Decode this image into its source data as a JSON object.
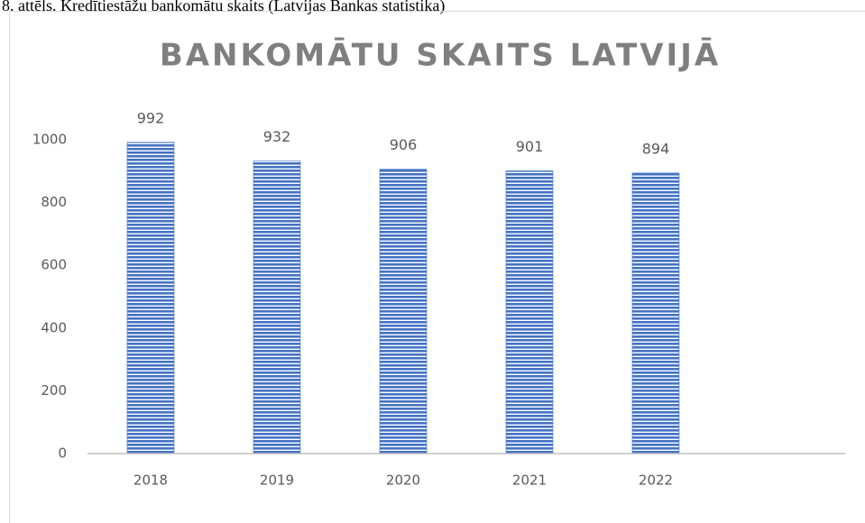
{
  "caption": "8. attēls. Kredītiestāžu bankomātu skaits (Latvijas Bankas statistika)",
  "chart_data": {
    "type": "bar",
    "title": "BANKOMĀTU SKAITS LATVIJĀ",
    "categories": [
      "2018",
      "2019",
      "2020",
      "2021",
      "2022",
      null
    ],
    "values": [
      992,
      932,
      906,
      901,
      894,
      null
    ],
    "color": "#4472c4",
    "ylim": [
      0,
      1000
    ],
    "yticks": [
      0,
      200,
      400,
      600,
      800,
      1000
    ],
    "grid": false
  }
}
